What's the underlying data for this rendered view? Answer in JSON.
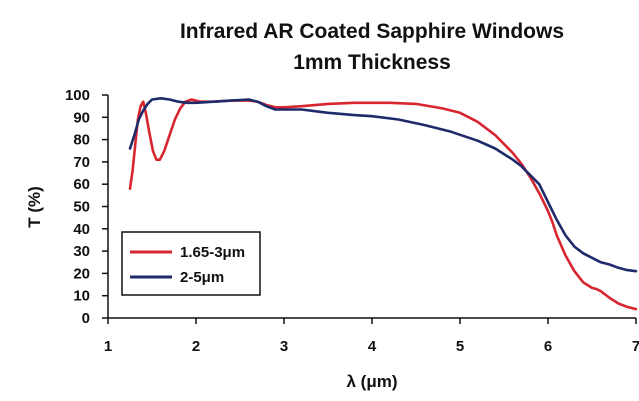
{
  "chart_data": {
    "type": "line",
    "title": "Infrared AR Coated Sapphire Windows",
    "subtitle": "1mm Thickness",
    "xlabel": "λ (μm)",
    "ylabel": "T (%)",
    "xlim": [
      1,
      7
    ],
    "ylim": [
      0,
      100
    ],
    "x_ticks": [
      "1",
      "2",
      "3",
      "4",
      "5",
      "6",
      "7"
    ],
    "y_ticks": [
      "0",
      "10",
      "20",
      "30",
      "40",
      "50",
      "60",
      "70",
      "80",
      "90",
      "100"
    ],
    "grid": false,
    "legend_position": "bottom-left",
    "series": [
      {
        "name": "1.65-3μm",
        "color": "#d7262f",
        "points": [
          [
            1.25,
            58
          ],
          [
            1.28,
            66
          ],
          [
            1.31,
            78
          ],
          [
            1.34,
            89
          ],
          [
            1.37,
            95
          ],
          [
            1.4,
            97
          ],
          [
            1.43,
            92
          ],
          [
            1.47,
            83
          ],
          [
            1.51,
            75
          ],
          [
            1.55,
            71
          ],
          [
            1.59,
            71
          ],
          [
            1.64,
            75
          ],
          [
            1.7,
            82
          ],
          [
            1.76,
            89
          ],
          [
            1.82,
            94
          ],
          [
            1.88,
            97
          ],
          [
            1.95,
            98
          ],
          [
            2.05,
            97
          ],
          [
            2.2,
            97
          ],
          [
            2.4,
            97.5
          ],
          [
            2.6,
            97.5
          ],
          [
            2.7,
            97
          ],
          [
            2.8,
            95.5
          ],
          [
            2.9,
            94.5
          ],
          [
            3.0,
            94.5
          ],
          [
            3.2,
            95
          ],
          [
            3.5,
            96
          ],
          [
            3.8,
            96.5
          ],
          [
            4.2,
            96.5
          ],
          [
            4.5,
            96
          ],
          [
            4.8,
            94
          ],
          [
            5.0,
            92
          ],
          [
            5.2,
            88
          ],
          [
            5.4,
            82
          ],
          [
            5.6,
            74
          ],
          [
            5.7,
            69
          ],
          [
            5.8,
            63
          ],
          [
            5.9,
            56
          ],
          [
            6.0,
            48
          ],
          [
            6.05,
            43
          ],
          [
            6.1,
            37
          ],
          [
            6.2,
            28
          ],
          [
            6.3,
            21
          ],
          [
            6.4,
            16
          ],
          [
            6.5,
            13.5
          ],
          [
            6.55,
            13
          ],
          [
            6.6,
            12
          ],
          [
            6.7,
            9
          ],
          [
            6.8,
            6.5
          ],
          [
            6.9,
            5
          ],
          [
            7.0,
            4
          ]
        ]
      },
      {
        "name": "2-5μm",
        "color": "#1f2a6b",
        "points": [
          [
            1.25,
            76
          ],
          [
            1.3,
            82
          ],
          [
            1.35,
            89
          ],
          [
            1.4,
            93
          ],
          [
            1.45,
            96
          ],
          [
            1.5,
            98
          ],
          [
            1.6,
            98.5
          ],
          [
            1.7,
            98
          ],
          [
            1.8,
            97
          ],
          [
            1.9,
            96.5
          ],
          [
            2.0,
            96.5
          ],
          [
            2.2,
            97
          ],
          [
            2.4,
            97.5
          ],
          [
            2.6,
            98
          ],
          [
            2.7,
            97
          ],
          [
            2.8,
            95
          ],
          [
            2.9,
            93.5
          ],
          [
            3.0,
            93.5
          ],
          [
            3.2,
            93.5
          ],
          [
            3.5,
            92
          ],
          [
            3.8,
            91
          ],
          [
            4.0,
            90.5
          ],
          [
            4.3,
            89
          ],
          [
            4.6,
            86.5
          ],
          [
            4.9,
            83.5
          ],
          [
            5.2,
            79.5
          ],
          [
            5.4,
            76
          ],
          [
            5.6,
            71
          ],
          [
            5.7,
            68
          ],
          [
            5.8,
            64
          ],
          [
            5.9,
            60
          ],
          [
            6.0,
            52
          ],
          [
            6.1,
            44
          ],
          [
            6.2,
            37
          ],
          [
            6.3,
            32
          ],
          [
            6.4,
            29
          ],
          [
            6.5,
            27
          ],
          [
            6.6,
            25
          ],
          [
            6.7,
            24
          ],
          [
            6.8,
            22.5
          ],
          [
            6.9,
            21.5
          ],
          [
            7.0,
            21
          ]
        ]
      }
    ]
  }
}
